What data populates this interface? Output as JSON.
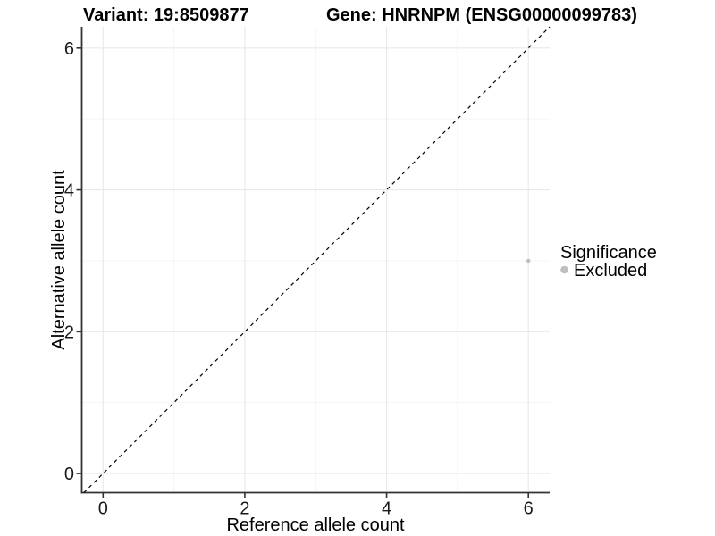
{
  "page": {
    "background": "#ffffff"
  },
  "chart_data": {
    "type": "scatter",
    "titles": {
      "left": "Variant: 19:8509877",
      "right": "Gene: HNRNPM (ENSG00000099783)"
    },
    "xlabel": "Reference allele count",
    "ylabel": "Alternative allele count",
    "xlim": [
      -0.3,
      6.3
    ],
    "ylim": [
      -0.27,
      6.3
    ],
    "xticks": [
      0,
      2,
      4,
      6
    ],
    "yticks": [
      0,
      2,
      4,
      6
    ],
    "xticks_minor": [
      1,
      3,
      5
    ],
    "yticks_minor": [
      1,
      3,
      5
    ],
    "grid": {
      "on": true,
      "major_color": "#e8e8e8",
      "minor_color": "#f3f3f3"
    },
    "identity_line": {
      "slope": 1,
      "intercept": 0,
      "style": "dashed",
      "color": "#000000"
    },
    "series": [
      {
        "name": "Excluded",
        "color": "#bebebe",
        "point_radius": 2.2,
        "points": [
          {
            "x": 6,
            "y": 3
          }
        ]
      }
    ],
    "legend": {
      "position": "right",
      "title": "Significance",
      "items": [
        {
          "label": "Excluded",
          "color": "#bebebe",
          "key_radius": 4.3
        }
      ]
    },
    "colors": {
      "axis": "#333333",
      "tick": "#333333",
      "text": "#000000"
    }
  }
}
